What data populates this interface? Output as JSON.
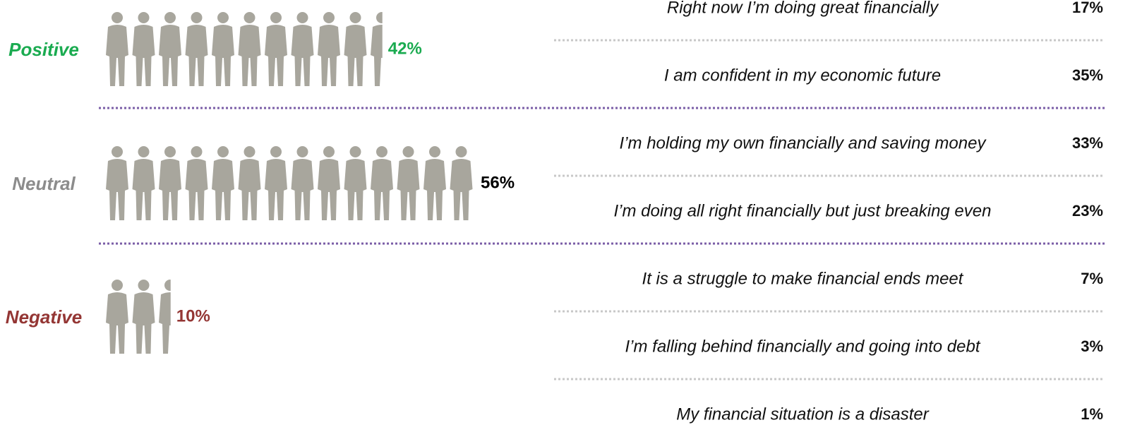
{
  "chart_data": [
    {
      "type": "pictograph",
      "categories": [
        "Positive",
        "Neutral",
        "Negative"
      ],
      "values": [
        42,
        56,
        10
      ],
      "value_labels": [
        "42%",
        "56%",
        "10%"
      ],
      "colors": [
        "#1aab50",
        "#8c8c8c",
        "#943634"
      ],
      "value_label_colors": [
        "#1aab50",
        "#000000",
        "#943634"
      ],
      "icon_color": "#a8a69d"
    },
    {
      "type": "list",
      "categories": [
        "Right now I’m doing great financially",
        "I am confident in my economic future",
        "I’m holding my own financially and saving money",
        "I’m doing all right  financially but just breaking even",
        "It is a struggle to make financial ends meet",
        "I’m falling behind financially and going into debt",
        "My financial situation is a disaster"
      ],
      "values": [
        17,
        35,
        33,
        23,
        7,
        3,
        1
      ],
      "value_labels": [
        "17%",
        "35%",
        "33%",
        "23%",
        "7%",
        "3%",
        "1%"
      ]
    }
  ]
}
